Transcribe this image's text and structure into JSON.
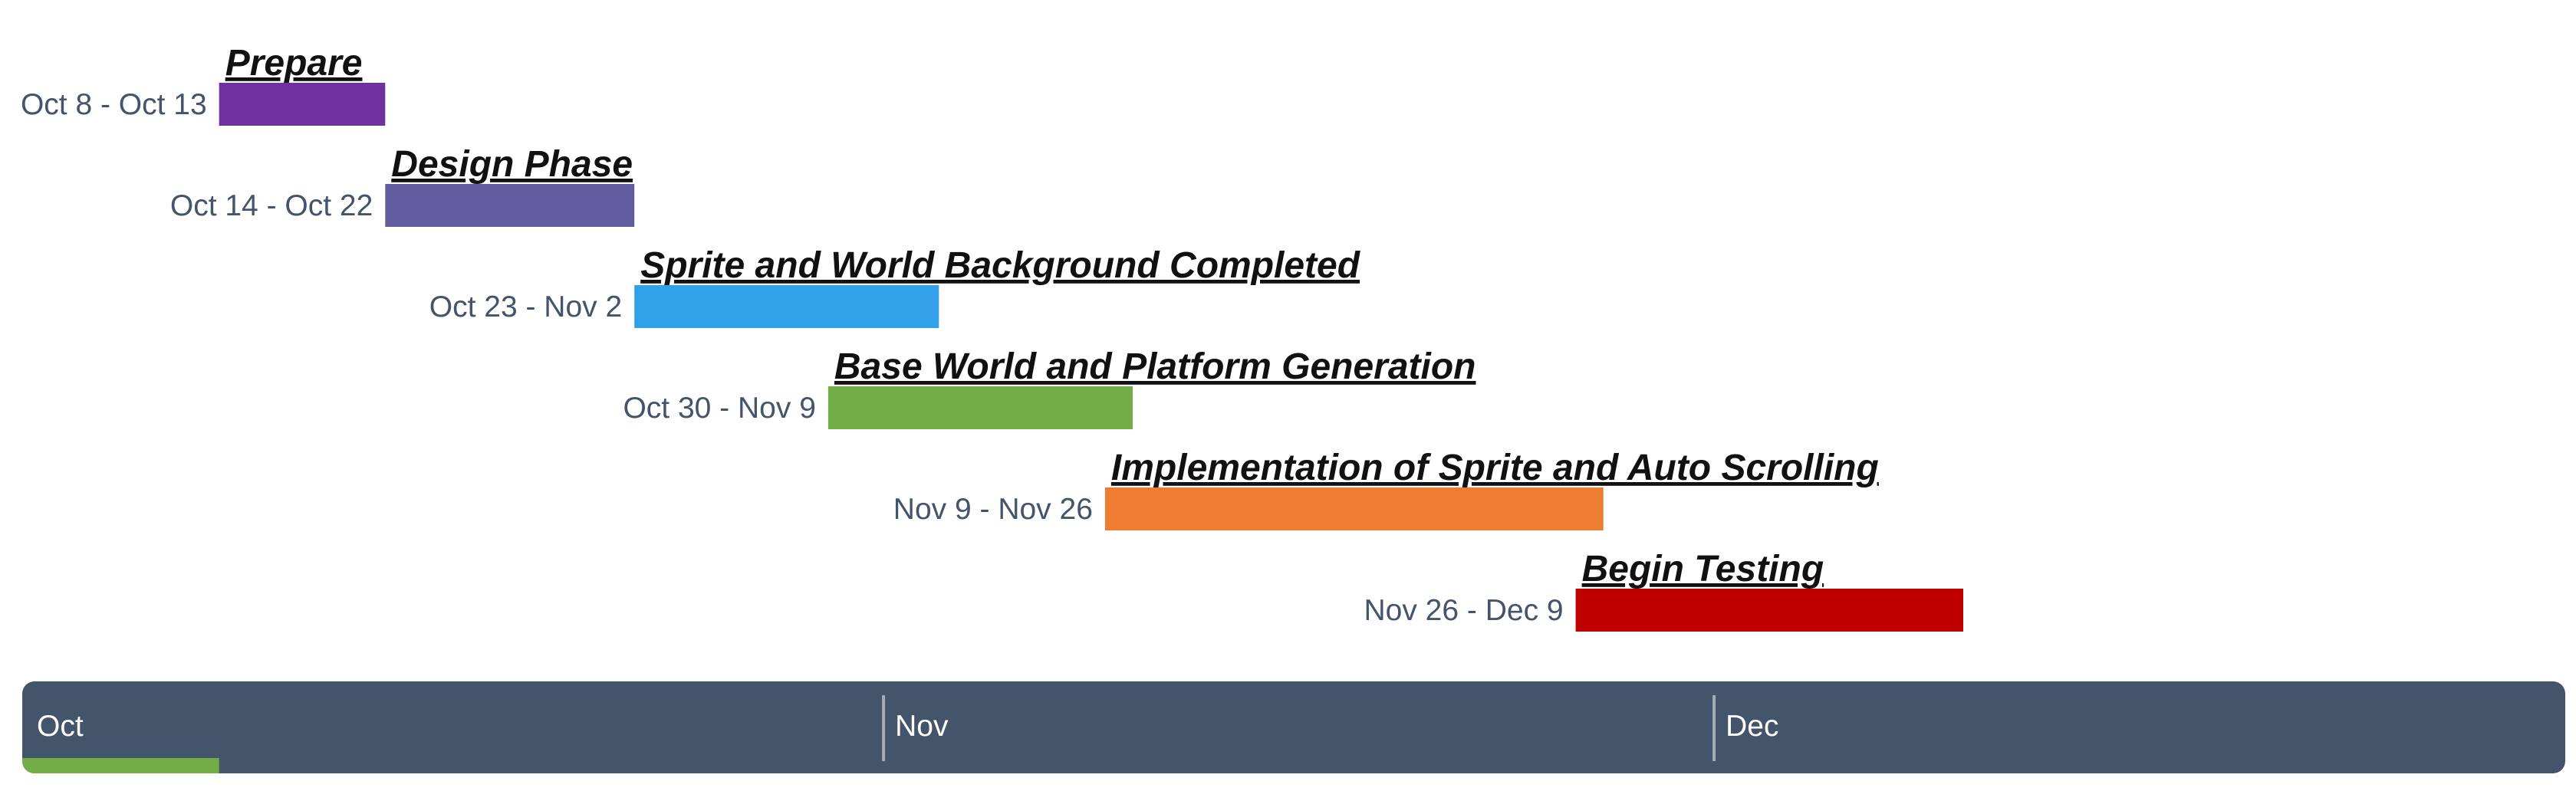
{
  "chart_data": {
    "type": "gantt",
    "date_range": [
      "Oct 1",
      "Dec 31"
    ],
    "tasks": [
      {
        "name": "Prepare",
        "start": "Oct 8",
        "end": "Oct 13",
        "label": "Oct 8 - Oct 13",
        "color": "#7030a0"
      },
      {
        "name": "Design Phase",
        "start": "Oct 14",
        "end": "Oct 22",
        "label": "Oct 14 - Oct 22",
        "color": "#635d9f"
      },
      {
        "name": "Sprite and World Background Completed",
        "start": "Oct 23",
        "end": "Nov 2",
        "label": "Oct 23 - Nov 2",
        "color": "#33a1e9"
      },
      {
        "name": "Base World and Platform Generation",
        "start": "Oct 30",
        "end": "Nov 9",
        "label": "Oct 30 - Nov 9",
        "color": "#72ad47"
      },
      {
        "name": "Implementation of Sprite and Auto Scrolling",
        "start": "Nov 9",
        "end": "Nov 26",
        "label": "Nov 9 - Nov 26",
        "color": "#ed7d31"
      },
      {
        "name": "Begin Testing",
        "start": "Nov 26",
        "end": "Dec 9",
        "label": "Nov 26 - Dec 9",
        "color": "#c00000"
      }
    ],
    "timeline": {
      "months": [
        "Oct",
        "Nov",
        "Dec"
      ],
      "background_color": "#44546a",
      "progress_until": "Oct 8",
      "progress_color": "#72ad47"
    }
  }
}
